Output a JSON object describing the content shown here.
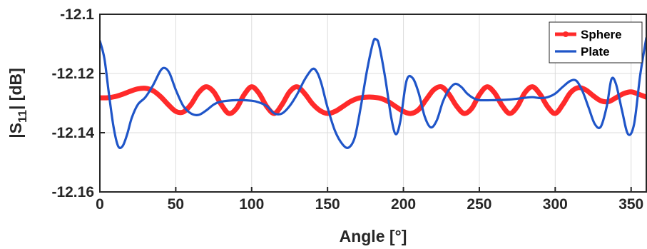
{
  "chart_data": {
    "type": "line",
    "xlabel": "Angle [°]",
    "ylabel_main": "|S",
    "ylabel_sub": "11",
    "ylabel_end": "| [dB]",
    "xlim": [
      0,
      360
    ],
    "ylim": [
      -12.16,
      -12.1
    ],
    "xticks": [
      0,
      50,
      100,
      150,
      200,
      250,
      300,
      350
    ],
    "yticks": [
      -12.1,
      -12.12,
      -12.14,
      -12.16
    ],
    "xtick_labels": [
      "0",
      "50",
      "100",
      "150",
      "200",
      "250",
      "300",
      "350"
    ],
    "ytick_labels": [
      "-12.1",
      "-12.12",
      "-12.14",
      "-12.16"
    ],
    "grid": true,
    "legend_position": "top-right",
    "series": [
      {
        "name": "Sphere",
        "color": "#ff2a2a",
        "marker": "dot",
        "x": [
          0,
          5,
          10,
          15,
          20,
          25,
          30,
          35,
          40,
          45,
          50,
          55,
          60,
          65,
          70,
          75,
          80,
          85,
          90,
          95,
          100,
          105,
          110,
          115,
          120,
          125,
          130,
          135,
          140,
          145,
          150,
          155,
          160,
          165,
          170,
          175,
          180,
          185,
          190,
          195,
          200,
          205,
          210,
          215,
          220,
          225,
          230,
          235,
          240,
          245,
          250,
          255,
          260,
          265,
          270,
          275,
          280,
          285,
          290,
          295,
          300,
          305,
          310,
          315,
          320,
          325,
          330,
          335,
          340,
          345,
          350,
          355,
          360
        ],
        "y": [
          -12.1282,
          -12.1282,
          -12.1278,
          -12.127,
          -12.126,
          -12.1252,
          -12.125,
          -12.1258,
          -12.1278,
          -12.1305,
          -12.1328,
          -12.133,
          -12.1305,
          -12.1265,
          -12.1245,
          -12.1262,
          -12.1305,
          -12.1335,
          -12.1318,
          -12.1272,
          -12.1245,
          -12.1268,
          -12.1312,
          -12.1335,
          -12.1305,
          -12.1262,
          -12.1245,
          -12.1268,
          -12.1302,
          -12.1325,
          -12.1335,
          -12.1328,
          -12.1312,
          -12.1295,
          -12.1284,
          -12.128,
          -12.128,
          -12.1284,
          -12.1295,
          -12.1312,
          -12.1328,
          -12.1335,
          -12.1322,
          -12.1288,
          -12.1255,
          -12.1245,
          -12.127,
          -12.131,
          -12.1335,
          -12.1318,
          -12.1272,
          -12.1245,
          -12.1265,
          -12.1308,
          -12.1335,
          -12.1312,
          -12.1265,
          -12.1245,
          -12.127,
          -12.1312,
          -12.1335,
          -12.1305,
          -12.1265,
          -12.1248,
          -12.1255,
          -12.1275,
          -12.1292,
          -12.1295,
          -12.1282,
          -12.1268,
          -12.1262,
          -12.127,
          -12.128
        ]
      },
      {
        "name": "Plate",
        "color": "#1f55c8",
        "marker": "none",
        "x": [
          0,
          3,
          6,
          9,
          12,
          15,
          18,
          21,
          25,
          30,
          35,
          40,
          43,
          46,
          50,
          55,
          60,
          65,
          70,
          75,
          80,
          90,
          100,
          105,
          110,
          115,
          120,
          125,
          130,
          135,
          140,
          143,
          146,
          150,
          155,
          160,
          164,
          168,
          172,
          176,
          180,
          182,
          184,
          188,
          192,
          195,
          198,
          202,
          206,
          210,
          214,
          218,
          222,
          226,
          230,
          234,
          238,
          242,
          246,
          250,
          260,
          270,
          280,
          285,
          290,
          295,
          300,
          305,
          310,
          314,
          318,
          322,
          326,
          330,
          334,
          337,
          340,
          344,
          348,
          352,
          356,
          360
        ],
        "y": [
          -12.109,
          -12.115,
          -12.127,
          -12.138,
          -12.1445,
          -12.1445,
          -12.1405,
          -12.135,
          -12.1305,
          -12.128,
          -12.124,
          -12.119,
          -12.1182,
          -12.12,
          -12.1255,
          -12.131,
          -12.1335,
          -12.134,
          -12.1325,
          -12.1305,
          -12.1295,
          -12.129,
          -12.1292,
          -12.1298,
          -12.131,
          -12.1335,
          -12.1335,
          -12.131,
          -12.127,
          -12.122,
          -12.1185,
          -12.1195,
          -12.1235,
          -12.1315,
          -12.1395,
          -12.144,
          -12.145,
          -12.1415,
          -12.131,
          -12.119,
          -12.1095,
          -12.1085,
          -12.1105,
          -12.1215,
          -12.135,
          -12.1405,
          -12.136,
          -12.1225,
          -12.1215,
          -12.1265,
          -12.1345,
          -12.1382,
          -12.1358,
          -12.1295,
          -12.1255,
          -12.1235,
          -12.1245,
          -12.1268,
          -12.1283,
          -12.129,
          -12.129,
          -12.1288,
          -12.1282,
          -12.128,
          -12.1283,
          -12.128,
          -12.1268,
          -12.1245,
          -12.1225,
          -12.1225,
          -12.126,
          -12.1315,
          -12.137,
          -12.138,
          -12.131,
          -12.122,
          -12.1235,
          -12.1325,
          -12.1405,
          -12.137,
          -12.1205,
          -12.108
        ]
      }
    ]
  }
}
